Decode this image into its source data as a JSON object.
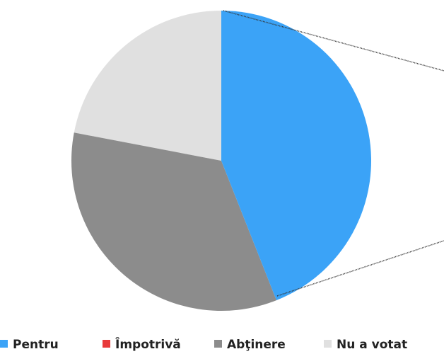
{
  "chart_data": {
    "type": "pie",
    "categories": [
      "Pentru",
      "Împotrivă",
      "Abţinere",
      "Nu a votat"
    ],
    "values": [
      44,
      0,
      34,
      22
    ],
    "colors": [
      "#3ba3f7",
      "#e8393a",
      "#8c8c8c",
      "#e0e0e0"
    ],
    "legend": "bottom"
  }
}
